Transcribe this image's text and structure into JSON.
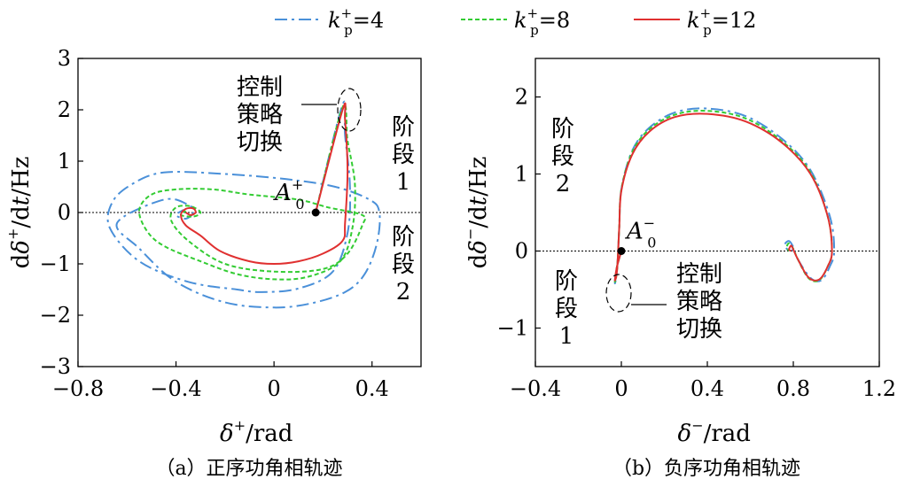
{
  "legend": {
    "items": [
      {
        "prefix": "k",
        "sup": "+",
        "sub": "p",
        "suffix": "=4",
        "color": "#4a90d9",
        "dash": "14,5,3,5"
      },
      {
        "prefix": "k",
        "sup": "+",
        "sub": "p",
        "suffix": "=8",
        "color": "#33cc33",
        "dash": "5,3"
      },
      {
        "prefix": "k",
        "sup": "+",
        "sub": "p",
        "suffix": "=12",
        "color": "#e03030",
        "dash": ""
      }
    ]
  },
  "chart_data": [
    {
      "type": "line",
      "caption": "（a）正序功角相轨迹",
      "xlabel": {
        "sym": "δ",
        "sup": "+",
        "unit": "/rad"
      },
      "ylabel": {
        "pre": "d",
        "sym": "δ",
        "sup": "+",
        "post": "/d",
        "t": "t",
        "unit": "/Hz"
      },
      "xlim": [
        -0.8,
        0.6
      ],
      "ylim": [
        -3,
        3
      ],
      "xticks": [
        -0.8,
        -0.4,
        0,
        0.4
      ],
      "xtick_labels": [
        "−0.8",
        "−0.4",
        "0",
        "0.4"
      ],
      "yticks": [
        -3,
        -2,
        -1,
        0,
        1,
        2,
        3
      ],
      "ytick_labels": [
        "−3",
        "−2",
        "−1",
        "0",
        "1",
        "2",
        "3"
      ],
      "zero_line": true,
      "point": {
        "x": 0.17,
        "y": 0.0,
        "label": "A",
        "sub": "0",
        "sup": "+"
      },
      "annotations": {
        "switch": [
          "控制",
          "策略",
          "切换"
        ],
        "stage1": [
          "阶",
          "段",
          "1"
        ],
        "stage2": [
          "阶",
          "段",
          "2"
        ]
      },
      "series": [
        {
          "name": "k+p=4",
          "points": [
            [
              0.17,
              0.0
            ],
            [
              0.28,
              2.1
            ],
            [
              0.29,
              1.5
            ],
            [
              0.31,
              0.5
            ],
            [
              0.3,
              -0.4
            ],
            [
              0.24,
              -1.15
            ],
            [
              0.1,
              -1.48
            ],
            [
              -0.05,
              -1.55
            ],
            [
              -0.15,
              -1.5
            ],
            [
              -0.35,
              -1.35
            ],
            [
              -0.55,
              -0.95
            ],
            [
              -0.67,
              -0.3
            ],
            [
              -0.66,
              0.2
            ],
            [
              -0.58,
              0.55
            ],
            [
              -0.45,
              0.78
            ],
            [
              -0.2,
              0.75
            ],
            [
              0.05,
              0.65
            ],
            [
              0.25,
              0.5
            ],
            [
              0.39,
              0.25
            ],
            [
              0.43,
              0.0
            ],
            [
              0.42,
              -0.6
            ],
            [
              0.37,
              -1.2
            ],
            [
              0.29,
              -1.55
            ],
            [
              0.15,
              -1.77
            ],
            [
              0.0,
              -1.85
            ],
            [
              -0.2,
              -1.75
            ],
            [
              -0.4,
              -1.35
            ],
            [
              -0.55,
              -0.7
            ],
            [
              -0.64,
              -0.2
            ],
            [
              -0.45,
              0.25
            ],
            [
              -0.35,
              0.15
            ],
            [
              -0.33,
              0.0
            ],
            [
              -0.36,
              -0.12
            ],
            [
              -0.4,
              -0.05
            ],
            [
              -0.37,
              0.05
            ]
          ]
        },
        {
          "name": "k+p=8",
          "points": [
            [
              0.17,
              0.0
            ],
            [
              0.28,
              2.05
            ],
            [
              0.3,
              1.4
            ],
            [
              0.33,
              0.55
            ],
            [
              0.32,
              -0.3
            ],
            [
              0.27,
              -0.95
            ],
            [
              0.14,
              -1.25
            ],
            [
              0.0,
              -1.3
            ],
            [
              -0.15,
              -1.2
            ],
            [
              -0.3,
              -0.95
            ],
            [
              -0.45,
              -0.65
            ],
            [
              -0.52,
              -0.35
            ],
            [
              -0.55,
              0.05
            ],
            [
              -0.5,
              0.35
            ],
            [
              -0.4,
              0.45
            ],
            [
              -0.25,
              0.45
            ],
            [
              -0.1,
              0.35
            ],
            [
              0.1,
              0.25
            ],
            [
              0.22,
              0.1
            ],
            [
              0.36,
              -0.05
            ],
            [
              0.36,
              -0.25
            ],
            [
              0.3,
              -0.8
            ],
            [
              0.2,
              -1.1
            ],
            [
              0.0,
              -1.15
            ],
            [
              -0.2,
              -1.0
            ],
            [
              -0.35,
              -0.55
            ],
            [
              -0.42,
              -0.15
            ],
            [
              -0.4,
              0.1
            ],
            [
              -0.34,
              0.12
            ],
            [
              -0.3,
              0.0
            ],
            [
              -0.33,
              -0.08
            ],
            [
              -0.38,
              -0.05
            ],
            [
              -0.36,
              0.03
            ]
          ]
        },
        {
          "name": "k+p=12",
          "points": [
            [
              0.17,
              0.0
            ],
            [
              0.28,
              2.0
            ],
            [
              0.29,
              1.8
            ],
            [
              0.3,
              0.8
            ],
            [
              0.29,
              -0.2
            ],
            [
              0.28,
              -0.55
            ],
            [
              0.2,
              -0.8
            ],
            [
              0.1,
              -0.95
            ],
            [
              0.0,
              -1.0
            ],
            [
              -0.1,
              -0.95
            ],
            [
              -0.22,
              -0.75
            ],
            [
              -0.3,
              -0.45
            ],
            [
              -0.36,
              -0.25
            ],
            [
              -0.38,
              -0.05
            ],
            [
              -0.36,
              0.07
            ],
            [
              -0.33,
              0.08
            ],
            [
              -0.32,
              0.0
            ],
            [
              -0.34,
              -0.05
            ],
            [
              -0.36,
              0.0
            ]
          ]
        }
      ]
    },
    {
      "type": "line",
      "caption": "（b）负序功角相轨迹",
      "xlabel": {
        "sym": "δ",
        "sup": "−",
        "unit": "/rad"
      },
      "ylabel": {
        "pre": "d",
        "sym": "δ",
        "sup": "−",
        "post": "/d",
        "t": "t",
        "unit": "/Hz"
      },
      "xlim": [
        -0.4,
        1.2
      ],
      "ylim": [
        -1.5,
        2.5
      ],
      "xticks": [
        -0.4,
        0,
        0.4,
        0.8,
        1.2
      ],
      "xtick_labels": [
        "−0.4",
        "0",
        "0.4",
        "0.8",
        "1.2"
      ],
      "yticks": [
        -1,
        0,
        1,
        2
      ],
      "ytick_labels": [
        "−1",
        "0",
        "1",
        "2"
      ],
      "zero_line": true,
      "point": {
        "x": 0.0,
        "y": 0.0,
        "label": "A",
        "sub": "0",
        "sup": "−"
      },
      "annotations": {
        "switch": [
          "控制",
          "策略",
          "切换"
        ],
        "stage1": [
          "阶",
          "段",
          "1"
        ],
        "stage2": [
          "阶",
          "段",
          "2"
        ]
      },
      "series": [
        {
          "name": "k+p=4",
          "points": [
            [
              0.0,
              0.0
            ],
            [
              -0.02,
              -0.2
            ],
            [
              -0.03,
              -0.42
            ],
            [
              -0.02,
              -0.25
            ],
            [
              -0.01,
              0.3
            ],
            [
              0.0,
              0.8
            ],
            [
              0.05,
              1.3
            ],
            [
              0.13,
              1.6
            ],
            [
              0.25,
              1.8
            ],
            [
              0.4,
              1.85
            ],
            [
              0.58,
              1.75
            ],
            [
              0.75,
              1.45
            ],
            [
              0.88,
              1.05
            ],
            [
              0.97,
              0.45
            ],
            [
              0.99,
              0.0
            ],
            [
              0.97,
              -0.2
            ],
            [
              0.93,
              -0.38
            ],
            [
              0.88,
              -0.35
            ],
            [
              0.82,
              -0.1
            ],
            [
              0.8,
              0.05
            ],
            [
              0.78,
              0.13
            ],
            [
              0.76,
              0.08
            ],
            [
              0.78,
              0.0
            ],
            [
              0.8,
              0.02
            ]
          ]
        },
        {
          "name": "k+p=8",
          "points": [
            [
              0.0,
              0.0
            ],
            [
              -0.02,
              -0.2
            ],
            [
              -0.03,
              -0.4
            ],
            [
              -0.02,
              -0.25
            ],
            [
              -0.01,
              0.3
            ],
            [
              0.0,
              0.8
            ],
            [
              0.05,
              1.28
            ],
            [
              0.13,
              1.58
            ],
            [
              0.25,
              1.77
            ],
            [
              0.4,
              1.82
            ],
            [
              0.58,
              1.72
            ],
            [
              0.75,
              1.42
            ],
            [
              0.88,
              1.02
            ],
            [
              0.96,
              0.45
            ],
            [
              0.98,
              0.0
            ],
            [
              0.96,
              -0.2
            ],
            [
              0.92,
              -0.38
            ],
            [
              0.87,
              -0.35
            ],
            [
              0.82,
              -0.1
            ],
            [
              0.8,
              0.03
            ],
            [
              0.78,
              0.1
            ],
            [
              0.77,
              0.05
            ],
            [
              0.78,
              0.0
            ]
          ]
        },
        {
          "name": "k+p=12",
          "points": [
            [
              0.0,
              0.0
            ],
            [
              -0.02,
              -0.2
            ],
            [
              -0.03,
              -0.38
            ],
            [
              -0.02,
              -0.25
            ],
            [
              -0.01,
              0.3
            ],
            [
              0.0,
              0.78
            ],
            [
              0.05,
              1.25
            ],
            [
              0.13,
              1.55
            ],
            [
              0.25,
              1.74
            ],
            [
              0.4,
              1.78
            ],
            [
              0.58,
              1.68
            ],
            [
              0.75,
              1.4
            ],
            [
              0.88,
              1.0
            ],
            [
              0.96,
              0.45
            ],
            [
              0.98,
              0.0
            ],
            [
              0.96,
              -0.2
            ],
            [
              0.92,
              -0.37
            ],
            [
              0.87,
              -0.34
            ],
            [
              0.82,
              -0.1
            ],
            [
              0.8,
              0.02
            ],
            [
              0.79,
              0.07
            ],
            [
              0.78,
              0.02
            ],
            [
              0.79,
              0.0
            ]
          ]
        }
      ]
    }
  ]
}
